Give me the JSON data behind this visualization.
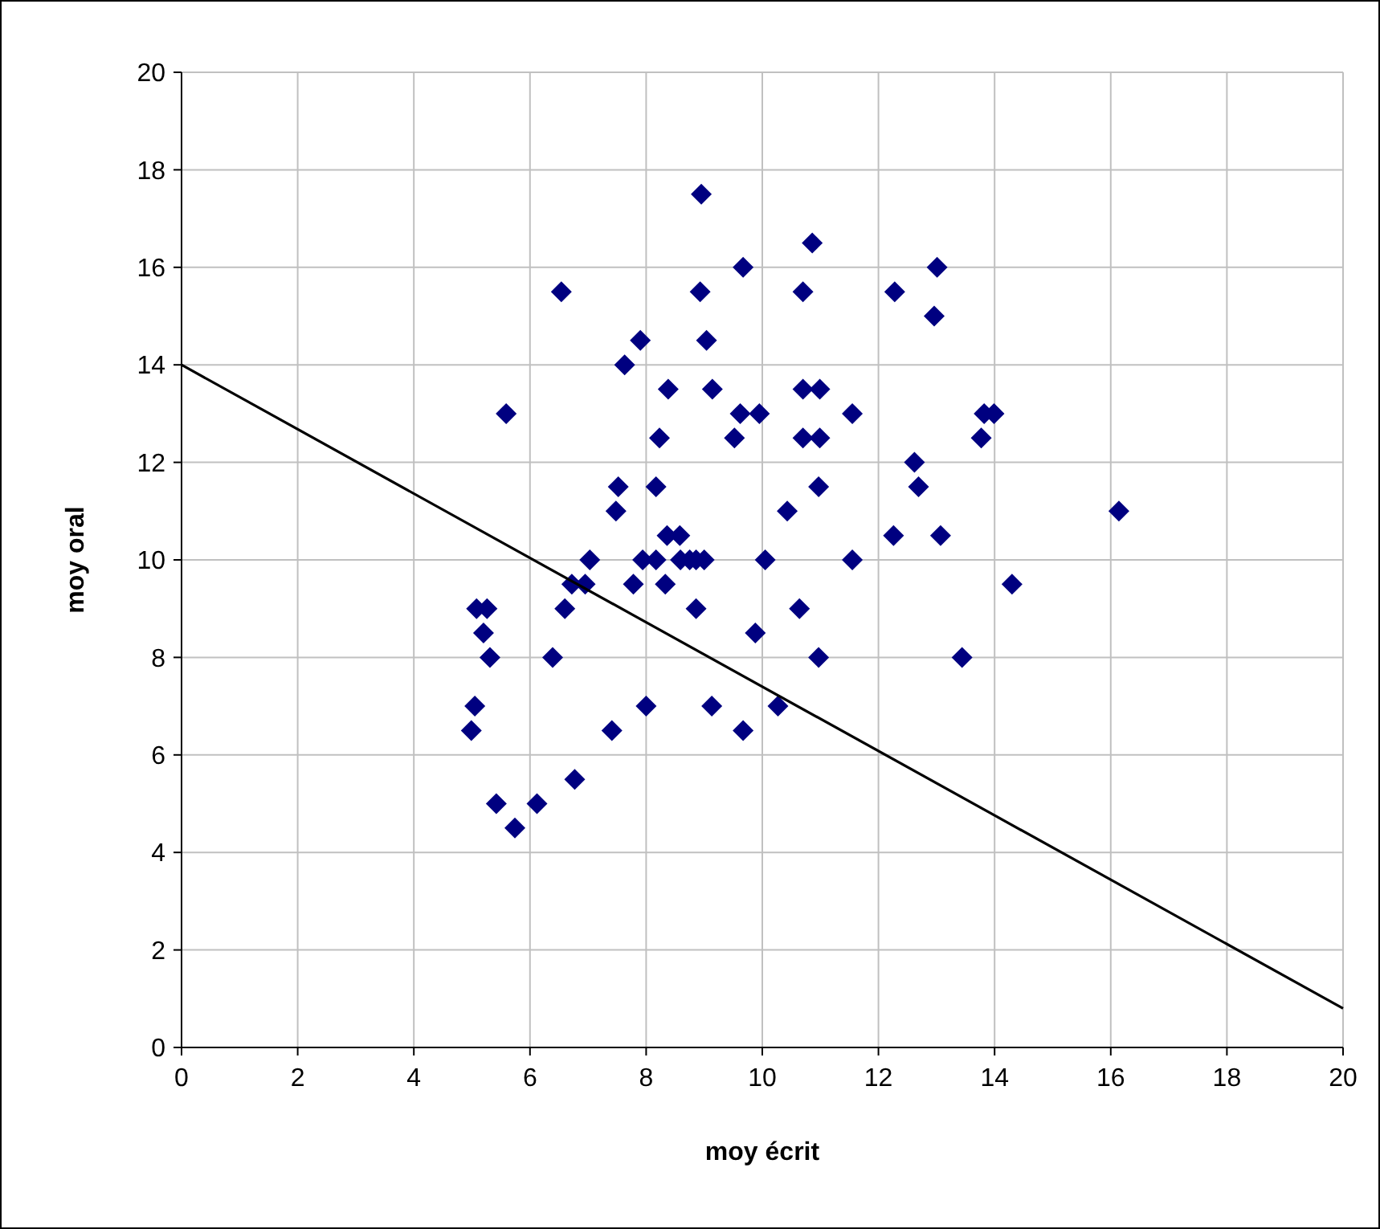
{
  "chart_data": {
    "type": "scatter",
    "xlabel": "moy écrit",
    "ylabel": "moy oral",
    "xlim": [
      0,
      20
    ],
    "ylim": [
      0,
      20
    ],
    "xticks": [
      0,
      2,
      4,
      6,
      8,
      10,
      12,
      14,
      16,
      18,
      20
    ],
    "yticks": [
      0,
      2,
      4,
      6,
      8,
      10,
      12,
      14,
      16,
      18,
      20
    ],
    "grid": true,
    "marker": "diamond",
    "series": [
      {
        "color": "#000080",
        "x": [
          8.95,
          6.54,
          8.93,
          9.67,
          10.7,
          10.86,
          12.28,
          13.01,
          12.96,
          7.9,
          9.04,
          7.63,
          5.59,
          8.38,
          9.14,
          9.62,
          9.95,
          10.7,
          10.99,
          11.55,
          13.82,
          13.99,
          8.23,
          9.52,
          10.7,
          10.99,
          12.62,
          13.77,
          7.52,
          7.48,
          8.17,
          10.43,
          10.97,
          12.69,
          16.14,
          8.36,
          8.58,
          12.26,
          13.07,
          7.03,
          7.94,
          8.17,
          8.59,
          8.75,
          8.86,
          9.0,
          10.05,
          11.55,
          6.72,
          6.95,
          7.78,
          8.33,
          14.3,
          5.08,
          5.26,
          6.6,
          8.86,
          10.64,
          5.2,
          9.88,
          5.31,
          6.39,
          10.97,
          13.44,
          5.05,
          8.0,
          9.13,
          10.27,
          4.99,
          7.41,
          9.67,
          6.77,
          5.42,
          6.12,
          5.74
        ],
        "values": [
          17.5,
          15.5,
          15.5,
          16.0,
          15.5,
          16.5,
          15.5,
          16.0,
          15.0,
          14.5,
          14.5,
          14.0,
          13.0,
          13.5,
          13.5,
          13.0,
          13.0,
          13.5,
          13.5,
          13.0,
          13.0,
          13.0,
          12.5,
          12.5,
          12.5,
          12.5,
          12.0,
          12.5,
          11.5,
          11.0,
          11.5,
          11.0,
          11.5,
          11.5,
          11.0,
          10.5,
          10.5,
          10.5,
          10.5,
          10.0,
          10.0,
          10.0,
          10.0,
          10.0,
          10.0,
          10.0,
          10.0,
          10.0,
          9.5,
          9.5,
          9.5,
          9.5,
          9.5,
          9.0,
          9.0,
          9.0,
          9.0,
          9.0,
          8.5,
          8.5,
          8.0,
          8.0,
          8.0,
          8.0,
          7.0,
          7.0,
          7.0,
          7.0,
          6.5,
          6.5,
          6.5,
          5.5,
          5.0,
          5.0,
          4.5
        ]
      },
      {
        "type": "line",
        "color": "#000000",
        "marker": "none",
        "line_style": "solid",
        "x": [
          0,
          20
        ],
        "values": [
          14,
          0.8
        ]
      }
    ]
  }
}
